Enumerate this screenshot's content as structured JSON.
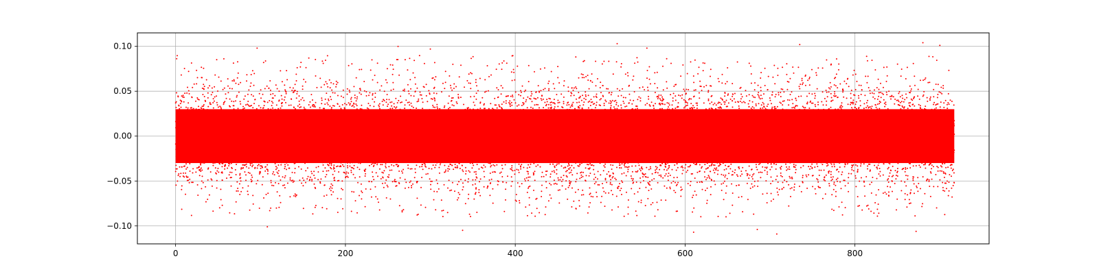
{
  "chart_data": {
    "type": "scatter",
    "title": "",
    "xlabel": "",
    "ylabel": "",
    "xlim": [
      -45,
      958
    ],
    "ylim": [
      -0.12,
      0.115
    ],
    "xticks": [
      0,
      200,
      400,
      600,
      800
    ],
    "xtick_labels": [
      "0",
      "200",
      "400",
      "600",
      "800"
    ],
    "yticks": [
      0.1,
      0.05,
      0.0,
      -0.05,
      -0.1
    ],
    "ytick_labels": [
      "0.10",
      "0.05",
      "0.00",
      "−0.05",
      "−0.10"
    ],
    "grid": true,
    "marker_color": "#ff0000",
    "series": [
      {
        "x_range": [
          0,
          917
        ],
        "dense_band": [
          -0.03,
          0.03
        ],
        "typical_spread": [
          -0.09,
          0.09
        ],
        "observed_extremes": {
          "min": -0.109,
          "max": 0.104
        },
        "extreme_points": [
          {
            "x": 520,
            "y": 0.103
          },
          {
            "x": 735,
            "y": 0.102
          },
          {
            "x": 880,
            "y": 0.104
          },
          {
            "x": 262,
            "y": 0.1
          },
          {
            "x": 96,
            "y": 0.098
          },
          {
            "x": 300,
            "y": 0.097
          },
          {
            "x": 555,
            "y": 0.098
          },
          {
            "x": 708,
            "y": -0.109
          },
          {
            "x": 338,
            "y": -0.105
          },
          {
            "x": 685,
            "y": -0.104
          },
          {
            "x": 872,
            "y": -0.106
          },
          {
            "x": 108,
            "y": -0.101
          },
          {
            "x": 610,
            "y": -0.107
          },
          {
            "x": 900,
            "y": 0.101
          }
        ]
      }
    ]
  }
}
